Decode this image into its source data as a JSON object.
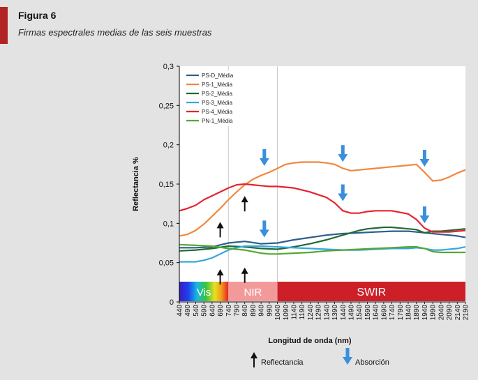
{
  "figure": {
    "label": "Figura 6",
    "title": "Firmas espectrales medias de las seis muestras"
  },
  "chart_data": {
    "type": "line",
    "xlabel": "Longitud de onda (nm)",
    "ylabel": "Reflectancia %",
    "xlim": [
      440,
      2190
    ],
    "ylim": [
      0,
      0.3
    ],
    "yticks": [
      "0",
      "0,05",
      "0,1",
      "0,15",
      "0,2",
      "0,25",
      "0,3"
    ],
    "xticks": [
      440,
      490,
      540,
      590,
      640,
      690,
      740,
      790,
      840,
      890,
      940,
      990,
      1040,
      1090,
      1140,
      1190,
      1240,
      1290,
      1340,
      1390,
      1440,
      1490,
      1540,
      1590,
      1640,
      1690,
      1740,
      1790,
      1840,
      1890,
      1940,
      1990,
      2040,
      2090,
      2140,
      2190
    ],
    "grid": false,
    "legend_position": "top-left",
    "series": [
      {
        "name": "PS-D_Média",
        "color": "#2e5f8a",
        "x": [
          440,
          540,
          640,
          740,
          840,
          940,
          1040,
          1140,
          1240,
          1340,
          1440,
          1540,
          1640,
          1740,
          1840,
          1890,
          1940,
          1990,
          2040,
          2140,
          2190
        ],
        "y": [
          0.069,
          0.069,
          0.07,
          0.075,
          0.077,
          0.074,
          0.075,
          0.079,
          0.082,
          0.085,
          0.087,
          0.088,
          0.089,
          0.09,
          0.09,
          0.089,
          0.088,
          0.087,
          0.086,
          0.084,
          0.082
        ]
      },
      {
        "name": "PS-1_Média",
        "color": "#f0883e",
        "x": [
          440,
          490,
          540,
          590,
          640,
          690,
          740,
          790,
          840,
          890,
          940,
          990,
          1040,
          1090,
          1140,
          1190,
          1240,
          1290,
          1340,
          1390,
          1440,
          1490,
          1540,
          1640,
          1740,
          1790,
          1840,
          1890,
          1940,
          1990,
          2040,
          2090,
          2140,
          2190
        ],
        "y": [
          0.084,
          0.086,
          0.091,
          0.099,
          0.109,
          0.119,
          0.13,
          0.14,
          0.149,
          0.156,
          0.161,
          0.165,
          0.17,
          0.175,
          0.177,
          0.178,
          0.178,
          0.178,
          0.177,
          0.175,
          0.17,
          0.167,
          0.168,
          0.17,
          0.172,
          0.173,
          0.174,
          0.175,
          0.165,
          0.154,
          0.155,
          0.159,
          0.164,
          0.168
        ]
      },
      {
        "name": "PS-2_Média",
        "color": "#1f6b35",
        "x": [
          440,
          540,
          640,
          740,
          840,
          940,
          1040,
          1140,
          1240,
          1340,
          1440,
          1540,
          1590,
          1640,
          1690,
          1740,
          1790,
          1840,
          1890,
          1940,
          1990,
          2040,
          2090,
          2140,
          2190
        ],
        "y": [
          0.065,
          0.066,
          0.068,
          0.071,
          0.07,
          0.068,
          0.067,
          0.07,
          0.074,
          0.079,
          0.085,
          0.091,
          0.093,
          0.094,
          0.095,
          0.095,
          0.094,
          0.093,
          0.092,
          0.088,
          0.09,
          0.09,
          0.091,
          0.092,
          0.093
        ]
      },
      {
        "name": "PS-3_Média",
        "color": "#37a6e0",
        "x": [
          440,
          540,
          590,
          640,
          690,
          740,
          790,
          840,
          940,
          1040,
          1140,
          1240,
          1340,
          1440,
          1540,
          1640,
          1740,
          1840,
          1890,
          1940,
          1990,
          2040,
          2140,
          2190
        ],
        "y": [
          0.051,
          0.051,
          0.053,
          0.056,
          0.061,
          0.066,
          0.069,
          0.071,
          0.071,
          0.07,
          0.069,
          0.068,
          0.067,
          0.066,
          0.066,
          0.067,
          0.068,
          0.068,
          0.069,
          0.068,
          0.066,
          0.066,
          0.068,
          0.07
        ]
      },
      {
        "name": "PS-4_Média",
        "color": "#e8222e",
        "x": [
          440,
          490,
          540,
          590,
          640,
          690,
          740,
          790,
          840,
          890,
          940,
          990,
          1040,
          1090,
          1140,
          1240,
          1340,
          1390,
          1440,
          1490,
          1540,
          1590,
          1640,
          1690,
          1740,
          1790,
          1840,
          1890,
          1940,
          1990,
          2040,
          2090,
          2140,
          2190
        ],
        "y": [
          0.116,
          0.119,
          0.123,
          0.13,
          0.135,
          0.14,
          0.145,
          0.149,
          0.15,
          0.149,
          0.148,
          0.147,
          0.147,
          0.146,
          0.145,
          0.14,
          0.133,
          0.126,
          0.116,
          0.113,
          0.113,
          0.115,
          0.116,
          0.116,
          0.116,
          0.114,
          0.112,
          0.105,
          0.094,
          0.089,
          0.089,
          0.089,
          0.09,
          0.091
        ]
      },
      {
        "name": "PN-1_Média",
        "color": "#55a833",
        "x": [
          440,
          540,
          640,
          740,
          840,
          890,
          940,
          990,
          1040,
          1140,
          1240,
          1340,
          1440,
          1540,
          1640,
          1740,
          1840,
          1890,
          1940,
          1990,
          2040,
          2140,
          2190
        ],
        "y": [
          0.073,
          0.072,
          0.071,
          0.068,
          0.066,
          0.064,
          0.062,
          0.061,
          0.061,
          0.062,
          0.063,
          0.065,
          0.066,
          0.067,
          0.068,
          0.069,
          0.07,
          0.07,
          0.068,
          0.064,
          0.063,
          0.063,
          0.063
        ]
      }
    ],
    "bands": [
      {
        "label": "Vis",
        "from": 440,
        "to": 740
      },
      {
        "label": "NIR",
        "from": 740,
        "to": 1040
      },
      {
        "label": "SWIR",
        "from": 1040,
        "to": 2190
      }
    ],
    "band_colors": {
      "nir": "#f29a9a",
      "swir": "#cc1f28"
    },
    "band_dividers": [
      740,
      1040
    ],
    "reflectance_arrows": [
      {
        "x": 690,
        "y": 0.092
      },
      {
        "x": 840,
        "y": 0.125
      },
      {
        "x": 690,
        "y": 0.032
      },
      {
        "x": 840,
        "y": 0.034
      }
    ],
    "absorption_arrows": [
      {
        "x": 960,
        "y": 0.183
      },
      {
        "x": 1440,
        "y": 0.188
      },
      {
        "x": 1940,
        "y": 0.182
      },
      {
        "x": 1440,
        "y": 0.138
      },
      {
        "x": 1940,
        "y": 0.11
      },
      {
        "x": 960,
        "y": 0.092
      }
    ],
    "arrow_colors": {
      "reflectance": "#111111",
      "absorption": "#3a8fdc"
    },
    "arrow_legend": {
      "reflectance": "Reflectancia",
      "absorption": "Absorción"
    }
  }
}
